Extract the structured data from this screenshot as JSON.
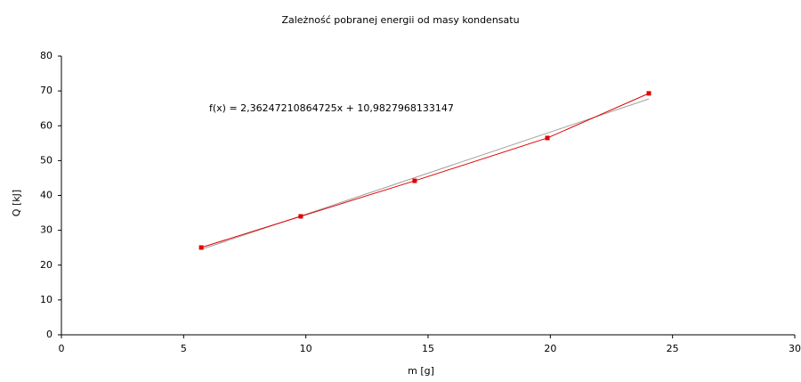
{
  "chart_data": {
    "type": "line",
    "title": "Zależność pobranej energii od masy kondensatu",
    "x_label": "m [g]",
    "y_label": "Q [kJ]",
    "annotation": "f(x) = 2,36247210864725x + 10,9827968133147",
    "xlim": [
      0,
      30
    ],
    "xticks": [
      0,
      5,
      10,
      15,
      20,
      25,
      30
    ],
    "ylim": [
      0,
      80
    ],
    "yticks": [
      0,
      10,
      20,
      30,
      40,
      50,
      60,
      70,
      80
    ],
    "grid": false,
    "series": [
      {
        "color": "#e00000",
        "markers": true,
        "x": [
          5.72,
          9.79,
          14.45,
          19.88,
          24.03
        ],
        "values": [
          25.05,
          34.0,
          44.2,
          56.5,
          69.3
        ]
      },
      {
        "color": "#a0a0a0",
        "markers": false,
        "x": [
          5.72,
          24.03
        ],
        "values": [
          24.5,
          67.7
        ]
      }
    ]
  }
}
